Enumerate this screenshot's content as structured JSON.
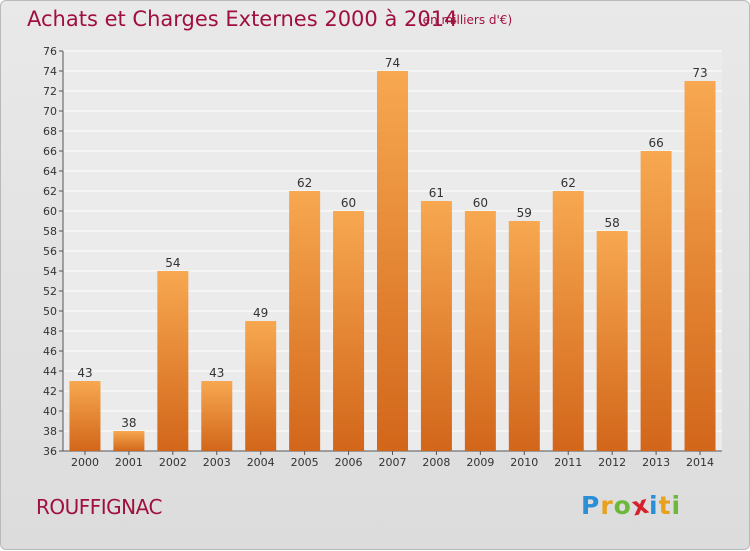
{
  "header": {
    "title": "Achats et Charges Externes 2000 à 2014",
    "subtitle": "(en milliers d'€)"
  },
  "footer": {
    "commune": "ROUFFIGNAC",
    "logo": "Proxiti",
    "logo_letters": [
      {
        "char": "P",
        "color": "#2a8fd6"
      },
      {
        "char": "r",
        "color": "#e8a11a"
      },
      {
        "char": "o",
        "color": "#6cb83a"
      },
      {
        "char": "x",
        "color": "#d4212c"
      },
      {
        "char": "i",
        "color": "#2a8fd6"
      },
      {
        "char": "t",
        "color": "#e8a11a"
      },
      {
        "char": "i",
        "color": "#6cb83a"
      }
    ]
  },
  "colors": {
    "accent": "#a0103e",
    "bar_top": "#f7a850",
    "bar_bottom": "#d2661a"
  },
  "chart_data": {
    "type": "bar",
    "title": "Achats et Charges Externes 2000 à 2014",
    "subtitle": "(en milliers d'€)",
    "xlabel": "",
    "ylabel": "",
    "ylim": [
      36,
      76
    ],
    "ytick_step": 2,
    "grid": true,
    "categories": [
      "2000",
      "2001",
      "2002",
      "2003",
      "2004",
      "2005",
      "2006",
      "2007",
      "2008",
      "2009",
      "2010",
      "2011",
      "2012",
      "2013",
      "2014"
    ],
    "values": [
      43,
      38,
      54,
      43,
      49,
      62,
      60,
      74,
      61,
      60,
      59,
      62,
      58,
      66,
      73
    ]
  }
}
